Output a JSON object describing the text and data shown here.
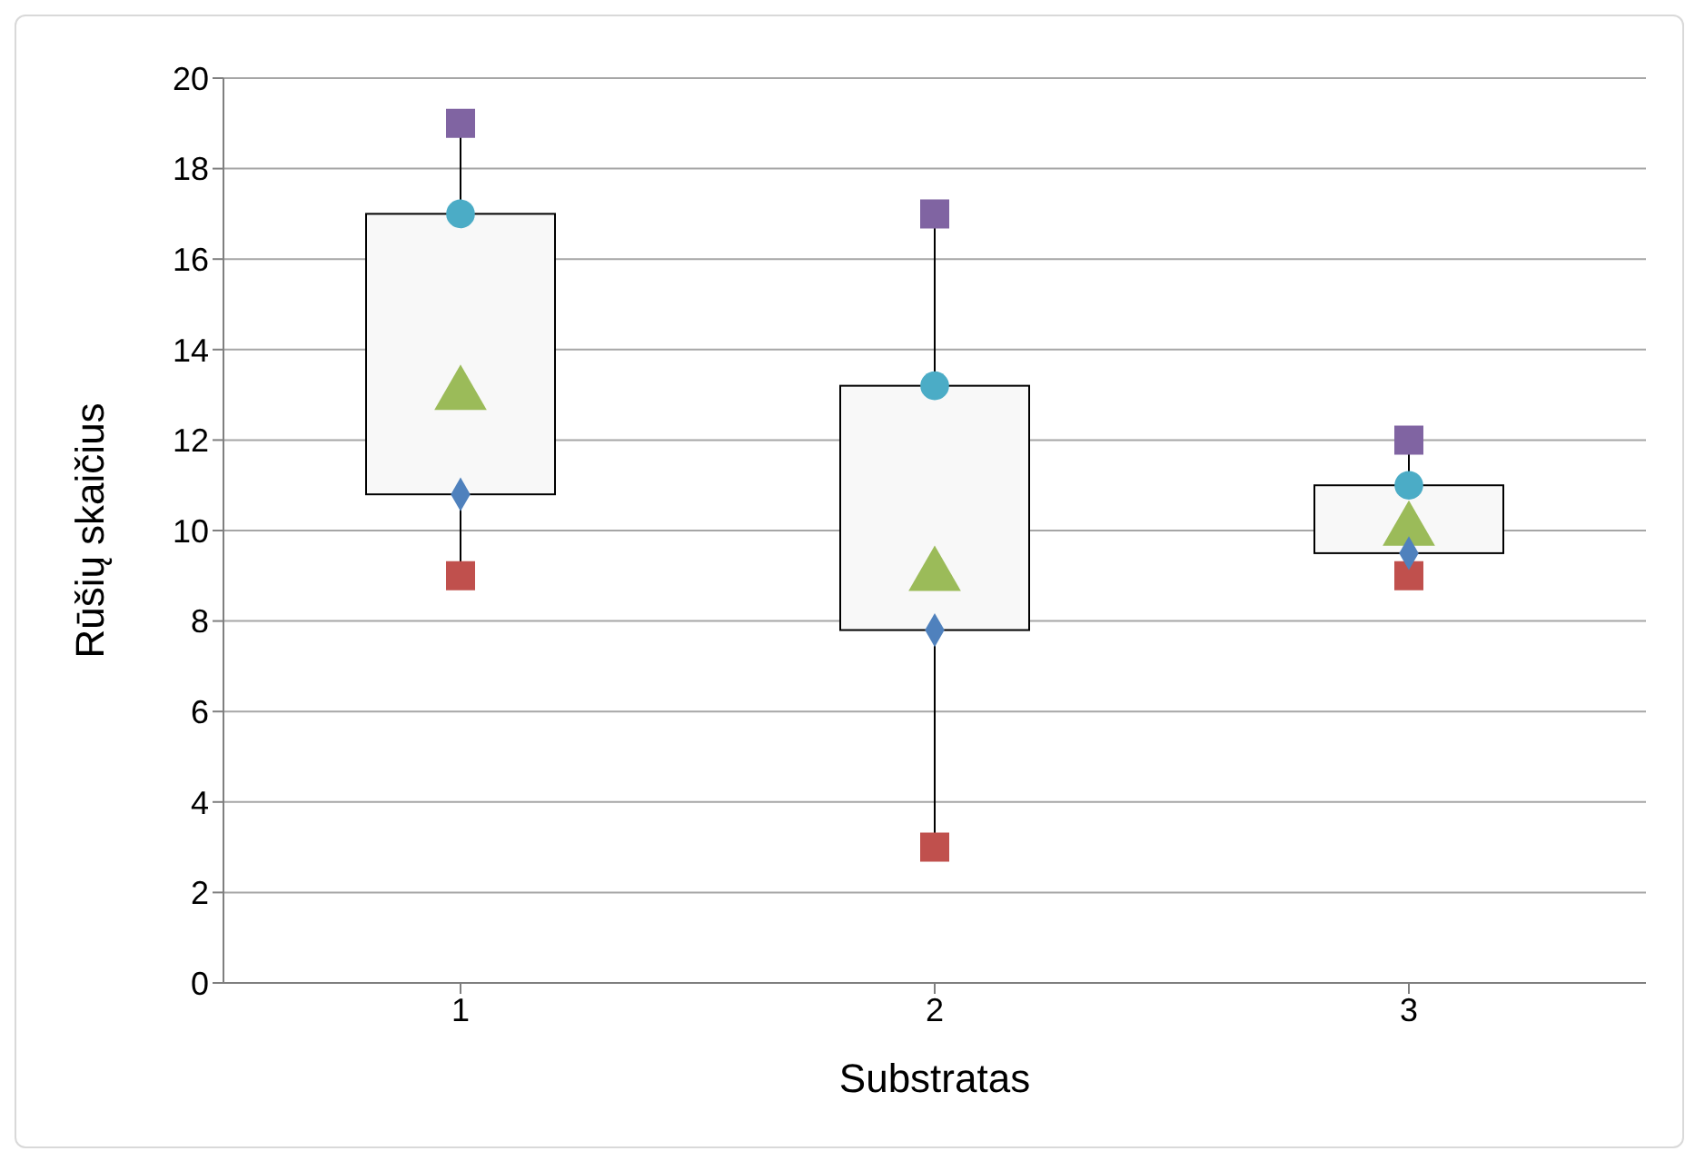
{
  "chart_data": {
    "type": "box",
    "xlabel": "Substratas",
    "ylabel": "Rūšių skaičius",
    "categories": [
      "1",
      "2",
      "3"
    ],
    "ylim": [
      0,
      20
    ],
    "yticks": [
      0,
      2,
      4,
      6,
      8,
      10,
      12,
      14,
      16,
      18,
      20
    ],
    "grid": "y",
    "legend": false,
    "series": [
      {
        "color": "#f8f8f8",
        "boxes": [
          {
            "low": 9,
            "q1": 10.8,
            "median": 13,
            "q3": 17,
            "high": 19
          },
          {
            "low": 3,
            "q1": 7.8,
            "median": 9,
            "q3": 13.2,
            "high": 17
          },
          {
            "low": 9,
            "q1": 9.5,
            "median": 10,
            "q3": 11,
            "high": 12
          }
        ]
      },
      {
        "type": "scatter",
        "marker": "square",
        "color": "#c0504d",
        "x": [
          "1",
          "2",
          "3"
        ],
        "values": [
          9,
          3,
          9
        ]
      },
      {
        "type": "scatter",
        "marker": "diamond",
        "color": "#4f81bd",
        "x": [
          "1",
          "2",
          "3"
        ],
        "values": [
          10.8,
          7.8,
          9.5
        ]
      },
      {
        "type": "scatter",
        "marker": "circle",
        "color": "#4bacc6",
        "x": [
          "1",
          "2",
          "3"
        ],
        "values": [
          17,
          13.2,
          11
        ]
      },
      {
        "type": "scatter",
        "marker": "square",
        "color": "#8064a2",
        "x": [
          "1",
          "2",
          "3"
        ],
        "values": [
          19,
          17,
          12
        ]
      }
    ]
  }
}
